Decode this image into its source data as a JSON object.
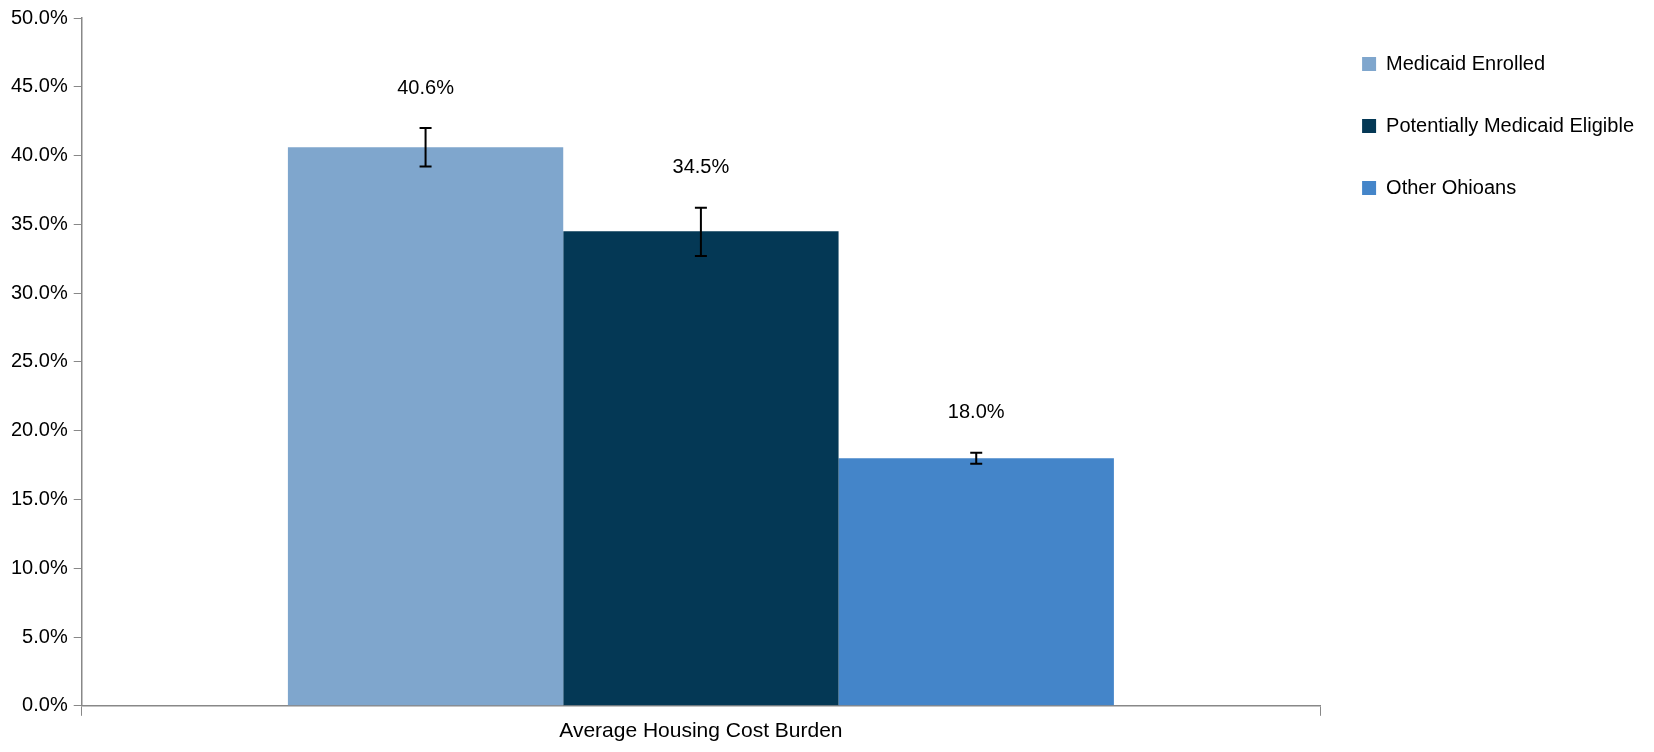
{
  "chart_data": {
    "type": "bar",
    "categories": [
      "Average Housing Cost Burden"
    ],
    "series": [
      {
        "name": "Medicaid Enrolled",
        "color": "#7fa6cd",
        "values": [
          40.6
        ],
        "errors": [
          [
            39.2,
            42.0
          ]
        ],
        "value_labels": [
          "40.6%"
        ]
      },
      {
        "name": "Potentially Medicaid Eligible",
        "color": "#043855",
        "values": [
          34.5
        ],
        "errors": [
          [
            32.7,
            36.2
          ]
        ],
        "value_labels": [
          "34.5%"
        ]
      },
      {
        "name": "Other Ohioans",
        "color": "#4485c9",
        "values": [
          18.0
        ],
        "errors": [
          [
            17.6,
            18.4
          ]
        ],
        "value_labels": [
          "18.0%"
        ]
      }
    ],
    "ylim": [
      0,
      50
    ],
    "yticks": [
      {
        "value": 0,
        "label": "0.0%"
      },
      {
        "value": 5,
        "label": "5.0%"
      },
      {
        "value": 10,
        "label": "10.0%"
      },
      {
        "value": 15,
        "label": "15.0%"
      },
      {
        "value": 20,
        "label": "20.0%"
      },
      {
        "value": 25,
        "label": "25.0%"
      },
      {
        "value": 30,
        "label": "30.0%"
      },
      {
        "value": 35,
        "label": "35.0%"
      },
      {
        "value": 40,
        "label": "40.0%"
      },
      {
        "value": 45,
        "label": "45.0%"
      },
      {
        "value": 50,
        "label": "50.0%"
      }
    ],
    "grid": false,
    "legend": "right"
  }
}
